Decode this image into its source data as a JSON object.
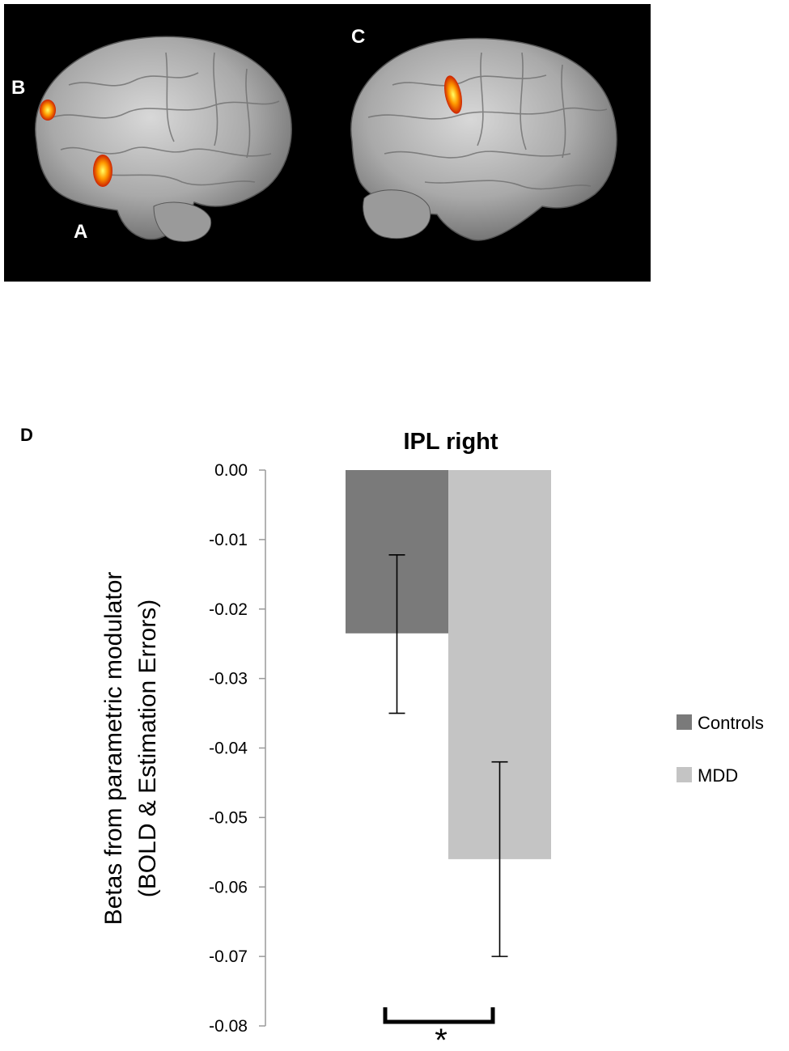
{
  "panels": {
    "a": "A",
    "b": "B",
    "c": "C",
    "d": "D"
  },
  "significance": "*",
  "colors": {
    "controls": "#7a7a7a",
    "mdd": "#c4c4c4",
    "brain_background": "#000000",
    "activation": "#ff7a00"
  },
  "chart_data": {
    "type": "bar",
    "title": "IPL right",
    "ylabel": "Betas from parametric modulator (BOLD & Estimation Errors)",
    "ylabel_lines": [
      "Betas from parametric modulator",
      "(BOLD & Estimation Errors)"
    ],
    "xlabel": "",
    "ylim": [
      -0.08,
      0.0
    ],
    "yticks": [
      0.0,
      -0.01,
      -0.02,
      -0.03,
      -0.04,
      -0.05,
      -0.06,
      -0.07,
      -0.08
    ],
    "ytick_labels": [
      "0.00",
      "-0.01",
      "-0.02",
      "-0.03",
      "-0.04",
      "-0.05",
      "-0.06",
      "-0.07",
      "-0.08"
    ],
    "grid": false,
    "legend_position": "right",
    "series": [
      {
        "name": "Controls",
        "value": -0.0235,
        "error_low": -0.035,
        "error_high": -0.0122,
        "color": "#7a7a7a"
      },
      {
        "name": "MDD",
        "value": -0.056,
        "error_low": -0.07,
        "error_high": -0.042,
        "color": "#c4c4c4"
      }
    ]
  }
}
